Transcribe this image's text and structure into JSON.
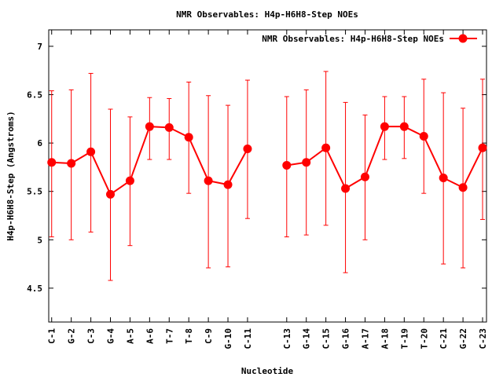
{
  "chart_data": {
    "type": "line",
    "title": "NMR Observables: H4p-H6H8-Step NOEs",
    "xlabel": "Nucleotide",
    "ylabel": "H4p-H6H8-Step (Angstroms)",
    "ylim": [
      4.15,
      7.17
    ],
    "xlim": [
      0.85,
      23.2
    ],
    "yticks": [
      4.5,
      5,
      5.5,
      6,
      6.5,
      7
    ],
    "ytick_labels": [
      "4.5",
      "5",
      "5.5",
      "6",
      "6.5",
      "7"
    ],
    "legend": {
      "position": "top-right",
      "label": "NMR Observables: H4p-H6H8-Step NOEs"
    },
    "color": "#ff0000",
    "series": [
      {
        "name": "NMR Observables: H4p-H6H8-Step NOEs",
        "points": [
          {
            "x": 1,
            "label": "C-1",
            "y": 5.8,
            "ylow": 5.03,
            "yhigh": 6.54
          },
          {
            "x": 2,
            "label": "G-2",
            "y": 5.79,
            "ylow": 5.0,
            "yhigh": 6.55
          },
          {
            "x": 3,
            "label": "C-3",
            "y": 5.91,
            "ylow": 5.08,
            "yhigh": 6.72
          },
          {
            "x": 4,
            "label": "G-4",
            "y": 5.47,
            "ylow": 4.58,
            "yhigh": 6.35
          },
          {
            "x": 5,
            "label": "A-5",
            "y": 5.61,
            "ylow": 4.94,
            "yhigh": 6.27
          },
          {
            "x": 6,
            "label": "A-6",
            "y": 6.17,
            "ylow": 5.83,
            "yhigh": 6.47
          },
          {
            "x": 7,
            "label": "T-7",
            "y": 6.16,
            "ylow": 5.83,
            "yhigh": 6.46
          },
          {
            "x": 8,
            "label": "T-8",
            "y": 6.06,
            "ylow": 5.48,
            "yhigh": 6.63
          },
          {
            "x": 9,
            "label": "C-9",
            "y": 5.61,
            "ylow": 4.71,
            "yhigh": 6.49
          },
          {
            "x": 10,
            "label": "G-10",
            "y": 5.57,
            "ylow": 4.72,
            "yhigh": 6.39
          },
          {
            "x": 11,
            "label": "C-11",
            "y": 5.94,
            "ylow": 5.22,
            "yhigh": 6.65
          },
          {
            "x": 13,
            "label": "C-13",
            "y": 5.77,
            "ylow": 5.03,
            "yhigh": 6.48
          },
          {
            "x": 14,
            "label": "G-14",
            "y": 5.8,
            "ylow": 5.05,
            "yhigh": 6.55
          },
          {
            "x": 15,
            "label": "C-15",
            "y": 5.95,
            "ylow": 5.15,
            "yhigh": 6.74
          },
          {
            "x": 16,
            "label": "G-16",
            "y": 5.53,
            "ylow": 4.66,
            "yhigh": 6.42
          },
          {
            "x": 17,
            "label": "A-17",
            "y": 5.65,
            "ylow": 5.0,
            "yhigh": 6.29
          },
          {
            "x": 18,
            "label": "A-18",
            "y": 6.17,
            "ylow": 5.83,
            "yhigh": 6.48
          },
          {
            "x": 19,
            "label": "T-19",
            "y": 6.17,
            "ylow": 5.84,
            "yhigh": 6.48
          },
          {
            "x": 20,
            "label": "T-20",
            "y": 6.07,
            "ylow": 5.48,
            "yhigh": 6.66
          },
          {
            "x": 21,
            "label": "C-21",
            "y": 5.64,
            "ylow": 4.75,
            "yhigh": 6.52
          },
          {
            "x": 22,
            "label": "G-22",
            "y": 5.54,
            "ylow": 4.71,
            "yhigh": 6.36
          },
          {
            "x": 23,
            "label": "C-23",
            "y": 5.95,
            "ylow": 5.21,
            "yhigh": 6.66
          }
        ]
      }
    ]
  }
}
